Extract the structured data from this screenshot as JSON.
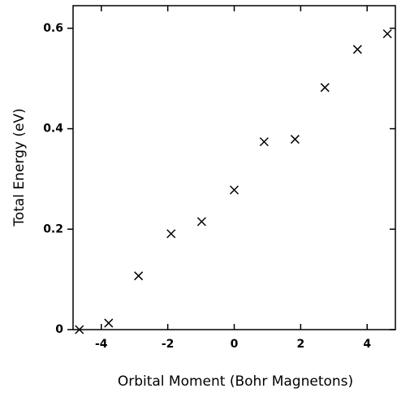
{
  "chart_data": {
    "type": "scatter",
    "x_label": "Orbital Moment (Bohr Magnetons)",
    "y_label": "Total Energy (eV)",
    "series": [
      {
        "marker": "x",
        "color": "#000000",
        "x": [
          -4.66,
          -3.78,
          -2.88,
          -1.9,
          -0.98,
          0,
          0.9,
          1.83,
          2.73,
          3.71,
          4.61
        ],
        "values": [
          0,
          0.013,
          0.107,
          0.191,
          0.215,
          0.278,
          0.374,
          0.379,
          0.482,
          0.558,
          0.589
        ]
      }
    ],
    "xlim": [
      -4.85,
      4.85
    ],
    "xticks": [
      -4,
      -2,
      0,
      2,
      4
    ],
    "ylim": [
      0,
      0.645
    ],
    "yticks": [
      0,
      {
        "value": 0.2,
        "label": "0.2"
      },
      {
        "value": 0.4,
        "label": "0.4"
      },
      {
        "value": 0.6,
        "label": "0.6"
      }
    ]
  }
}
